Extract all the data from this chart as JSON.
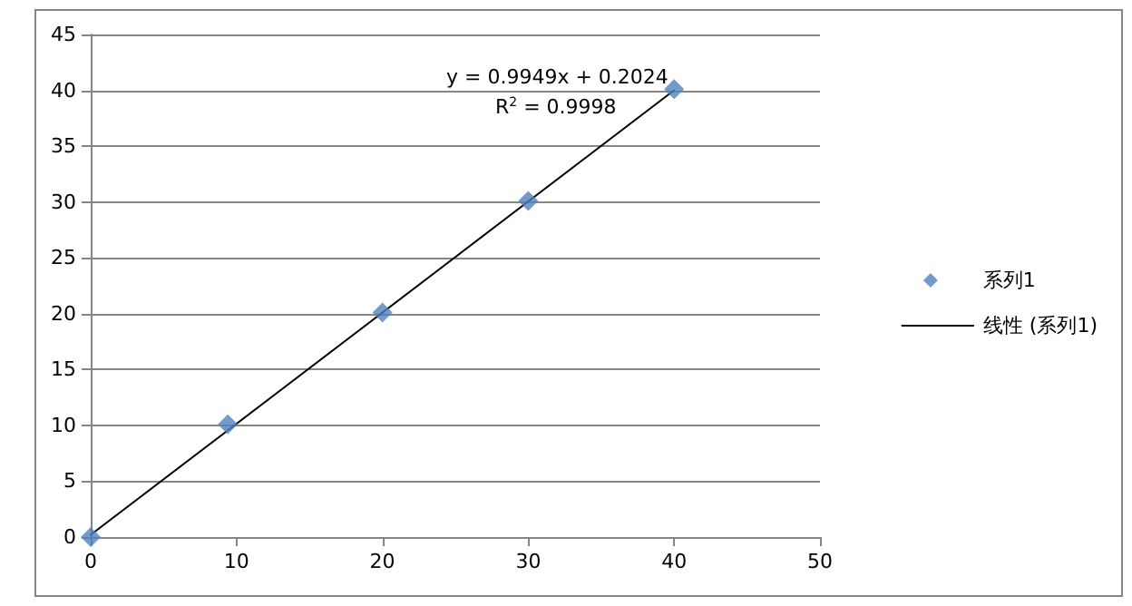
{
  "chart_data": {
    "type": "scatter",
    "series": [
      {
        "name": "系列1",
        "color": "#4f81bd",
        "marker": "diamond",
        "x": [
          0,
          9.4,
          20,
          30,
          40
        ],
        "values": [
          0,
          10.1,
          20.1,
          30.1,
          40.1
        ]
      },
      {
        "name": "线性 (系列1)",
        "type": "line",
        "color": "#000000",
        "marker": "none",
        "line_style": "solid",
        "x": [
          0,
          40
        ],
        "values": [
          0.2,
          40.0
        ]
      }
    ],
    "xlim": [
      0,
      50
    ],
    "xticks": [
      0,
      10,
      20,
      30,
      40,
      50
    ],
    "ylim": [
      0,
      45
    ],
    "yticks": [
      0,
      5,
      10,
      15,
      20,
      25,
      30,
      35,
      40,
      45
    ],
    "grid": "y",
    "legend": "right",
    "annotations": [
      "y = 0.9949x + 0.2024",
      "R$^{2}$ = 0.9998"
    ]
  }
}
